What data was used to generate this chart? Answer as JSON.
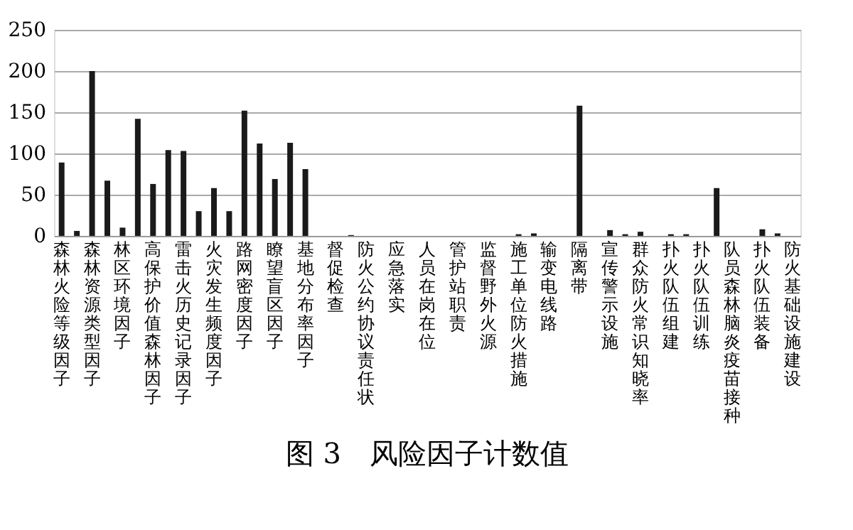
{
  "chart_data": {
    "type": "bar",
    "title": "图 3　风险因子计数值",
    "categories": [
      "森林火险等级因子",
      null,
      "森林资源类型因子",
      null,
      "林区环境因子",
      null,
      "高保护价值森林因子",
      null,
      "雷击火历史记录因子",
      null,
      "火灾发生频度因子",
      null,
      "路网密度因子",
      null,
      "瞭望盲区因子",
      null,
      "基地分布率因子",
      null,
      "督促检查",
      null,
      "防火公约协议责任状",
      null,
      "应急落实",
      null,
      "人员在岗在位",
      null,
      "管护站职责",
      null,
      "监督野外火源",
      null,
      "施工单位防火措施",
      null,
      "输变电线路",
      null,
      "隔离带",
      null,
      "宣传警示设施",
      null,
      "群众防火常识知晓率",
      null,
      "扑火队伍组建",
      null,
      "扑火队伍训练",
      null,
      "队员森林脑炎疫苗接种",
      null,
      "扑火队伍装备",
      null,
      "防火基础设施建设"
    ],
    "values": [
      89,
      6,
      200,
      67,
      10,
      142,
      63,
      104,
      103,
      30,
      58,
      30,
      152,
      112,
      69,
      113,
      81,
      0,
      0,
      1,
      0,
      0,
      0,
      0,
      0,
      0,
      0,
      0,
      0,
      0,
      2,
      3,
      0,
      0,
      158,
      0,
      7,
      2,
      5,
      0,
      2,
      2,
      0,
      58,
      0,
      0,
      8,
      3,
      0
    ],
    "color": "#1a1a1a",
    "ylim": [
      0,
      250
    ],
    "yticks": [
      0,
      50,
      100,
      150,
      200,
      250
    ],
    "grid": "y"
  }
}
